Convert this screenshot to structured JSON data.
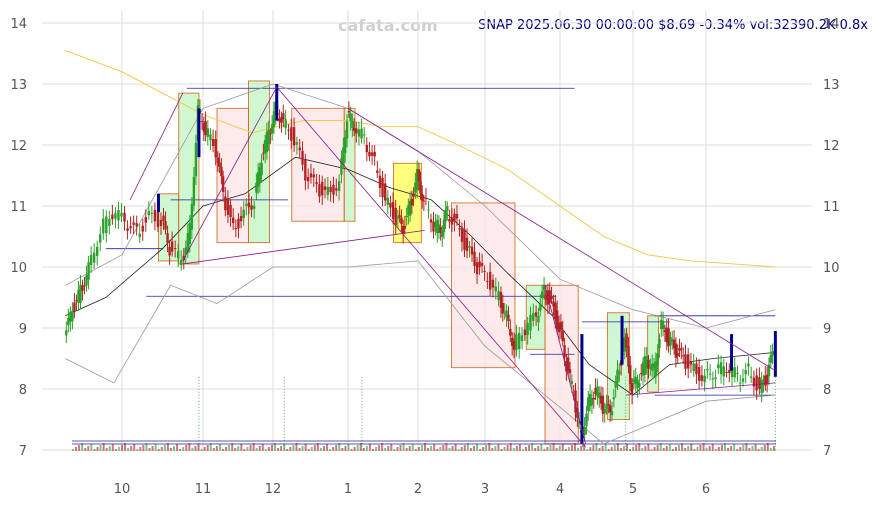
{
  "watermark": "cafata.com",
  "header": {
    "title": "SNAP 2025.06.30 00:00:00 $8.69 -0.34% vol:32390.2K 0.8x"
  },
  "chart_data": {
    "type": "candlestick",
    "title": "SNAP 2025.06.30 00:00:00 $8.69 -0.34% vol:32390.2K 0.8x",
    "ylim": [
      7,
      14
    ],
    "yticks": [
      "7",
      "8",
      "9",
      "10",
      "11",
      "12",
      "13",
      "14"
    ],
    "xlim": [
      9.3,
      6.95
    ],
    "xticks": [
      {
        "label": "10",
        "pos": 10
      },
      {
        "label": "11",
        "pos": 11
      },
      {
        "label": "12",
        "pos": 12
      },
      {
        "label": "1",
        "pos": 13
      },
      {
        "label": "2",
        "pos": 14
      },
      {
        "label": "3",
        "pos": 15
      },
      {
        "label": "4",
        "pos": 16
      },
      {
        "label": "5",
        "pos": 17
      },
      {
        "label": "6",
        "pos": 18
      }
    ],
    "close_series": [
      [
        9.3,
        8.8
      ],
      [
        9.4,
        9.3
      ],
      [
        9.5,
        9.6
      ],
      [
        9.6,
        10.0
      ],
      [
        9.75,
        10.6
      ],
      [
        9.9,
        10.9
      ],
      [
        10.05,
        10.75
      ],
      [
        10.2,
        10.55
      ],
      [
        10.35,
        10.85
      ],
      [
        10.5,
        10.75
      ],
      [
        10.6,
        10.3
      ],
      [
        10.75,
        10.1
      ],
      [
        10.85,
        10.6
      ],
      [
        10.95,
        12.6
      ],
      [
        11.05,
        12.25
      ],
      [
        11.2,
        11.9
      ],
      [
        11.3,
        11.2
      ],
      [
        11.45,
        10.6
      ],
      [
        11.6,
        10.9
      ],
      [
        11.75,
        11.1
      ],
      [
        11.85,
        11.8
      ],
      [
        11.95,
        12.2
      ],
      [
        12.05,
        12.6
      ],
      [
        12.15,
        12.4
      ],
      [
        12.3,
        12.1
      ],
      [
        12.45,
        11.5
      ],
      [
        12.6,
        11.3
      ],
      [
        12.75,
        11.2
      ],
      [
        12.9,
        11.4
      ],
      [
        13.0,
        12.5
      ],
      [
        13.1,
        12.3
      ],
      [
        13.25,
        12.1
      ],
      [
        13.4,
        11.7
      ],
      [
        13.55,
        11.1
      ],
      [
        13.7,
        10.8
      ],
      [
        13.8,
        10.6
      ],
      [
        13.9,
        11.0
      ],
      [
        14.0,
        11.5
      ],
      [
        14.1,
        11.1
      ],
      [
        14.25,
        10.7
      ],
      [
        14.35,
        10.6
      ],
      [
        14.45,
        10.9
      ],
      [
        14.6,
        10.7
      ],
      [
        14.75,
        10.3
      ],
      [
        14.9,
        10.0
      ],
      [
        15.05,
        9.8
      ],
      [
        15.2,
        9.5
      ],
      [
        15.3,
        9.2
      ],
      [
        15.4,
        8.7
      ],
      [
        15.55,
        9.0
      ],
      [
        15.7,
        9.2
      ],
      [
        15.8,
        9.6
      ],
      [
        15.9,
        9.4
      ],
      [
        16.0,
        9.0
      ],
      [
        16.1,
        8.4
      ],
      [
        16.2,
        7.9
      ],
      [
        16.3,
        7.2
      ],
      [
        16.4,
        7.8
      ],
      [
        16.5,
        8.0
      ],
      [
        16.6,
        7.7
      ],
      [
        16.7,
        7.6
      ],
      [
        16.8,
        8.2
      ],
      [
        16.9,
        8.8
      ],
      [
        17.0,
        8.0
      ],
      [
        17.1,
        8.2
      ],
      [
        17.2,
        8.5
      ],
      [
        17.3,
        8.3
      ],
      [
        17.4,
        9.1
      ],
      [
        17.5,
        8.8
      ],
      [
        17.6,
        8.6
      ],
      [
        17.7,
        8.5
      ],
      [
        17.85,
        8.3
      ],
      [
        18.0,
        8.2
      ],
      [
        18.15,
        8.3
      ],
      [
        18.3,
        8.35
      ],
      [
        18.45,
        8.2
      ],
      [
        18.6,
        8.3
      ],
      [
        18.75,
        8.0
      ],
      [
        18.85,
        8.2
      ],
      [
        18.95,
        8.69
      ]
    ],
    "overlays": {
      "bollinger_upper": [
        [
          9.3,
          9.7
        ],
        [
          10.0,
          10.2
        ],
        [
          11.0,
          12.6
        ],
        [
          12.0,
          13.0
        ],
        [
          13.0,
          12.6
        ],
        [
          14.0,
          11.9
        ],
        [
          15.0,
          11.0
        ],
        [
          16.0,
          9.8
        ],
        [
          17.0,
          9.3
        ],
        [
          18.0,
          9.0
        ],
        [
          18.95,
          9.3
        ]
      ],
      "bollinger_lower": [
        [
          9.3,
          8.5
        ],
        [
          9.9,
          8.1
        ],
        [
          10.6,
          9.7
        ],
        [
          11.2,
          9.4
        ],
        [
          12.0,
          10.0
        ],
        [
          13.0,
          10.0
        ],
        [
          14.0,
          10.1
        ],
        [
          15.0,
          8.7
        ],
        [
          16.0,
          7.7
        ],
        [
          16.6,
          7.1
        ],
        [
          17.2,
          7.4
        ],
        [
          18.0,
          7.8
        ],
        [
          18.95,
          7.9
        ]
      ],
      "sma_fast": [
        [
          9.3,
          9.2
        ],
        [
          9.8,
          9.5
        ],
        [
          10.5,
          10.3
        ],
        [
          11.0,
          11.0
        ],
        [
          11.6,
          11.2
        ],
        [
          12.3,
          11.8
        ],
        [
          13.0,
          11.6
        ],
        [
          13.6,
          11.3
        ],
        [
          14.2,
          11.1
        ],
        [
          14.8,
          10.5
        ],
        [
          15.3,
          9.9
        ],
        [
          15.9,
          9.2
        ],
        [
          16.4,
          8.4
        ],
        [
          17.0,
          7.9
        ],
        [
          17.5,
          8.4
        ],
        [
          18.1,
          8.5
        ],
        [
          18.95,
          8.6
        ]
      ],
      "sma_slow": [
        [
          9.3,
          13.55
        ],
        [
          10.0,
          13.2
        ],
        [
          11.0,
          12.5
        ],
        [
          11.7,
          12.2
        ],
        [
          12.4,
          12.4
        ],
        [
          13.0,
          12.4
        ],
        [
          13.5,
          12.3
        ],
        [
          14.0,
          12.3
        ],
        [
          14.6,
          12.0
        ],
        [
          15.3,
          11.6
        ],
        [
          16.0,
          11.0
        ],
        [
          16.6,
          10.5
        ],
        [
          17.2,
          10.2
        ],
        [
          17.8,
          10.1
        ],
        [
          18.95,
          10.0
        ]
      ]
    }
  },
  "colors": {
    "up": "#2ca02c",
    "down": "#b22222",
    "strong_up": "#00008b",
    "bb": "#999999",
    "sma_fast": "#222222",
    "sma_slow": "#f5c542",
    "trend": "#8b1a8b",
    "level": "#2020a0",
    "grid": "#dddddd",
    "box_red_fill": "#fde8e8",
    "box_red_edge": "#d2691e",
    "box_green_fill": "#c8f7c8",
    "box_green_edge": "#d2691e",
    "box_yellow_fill": "#ffff66"
  }
}
